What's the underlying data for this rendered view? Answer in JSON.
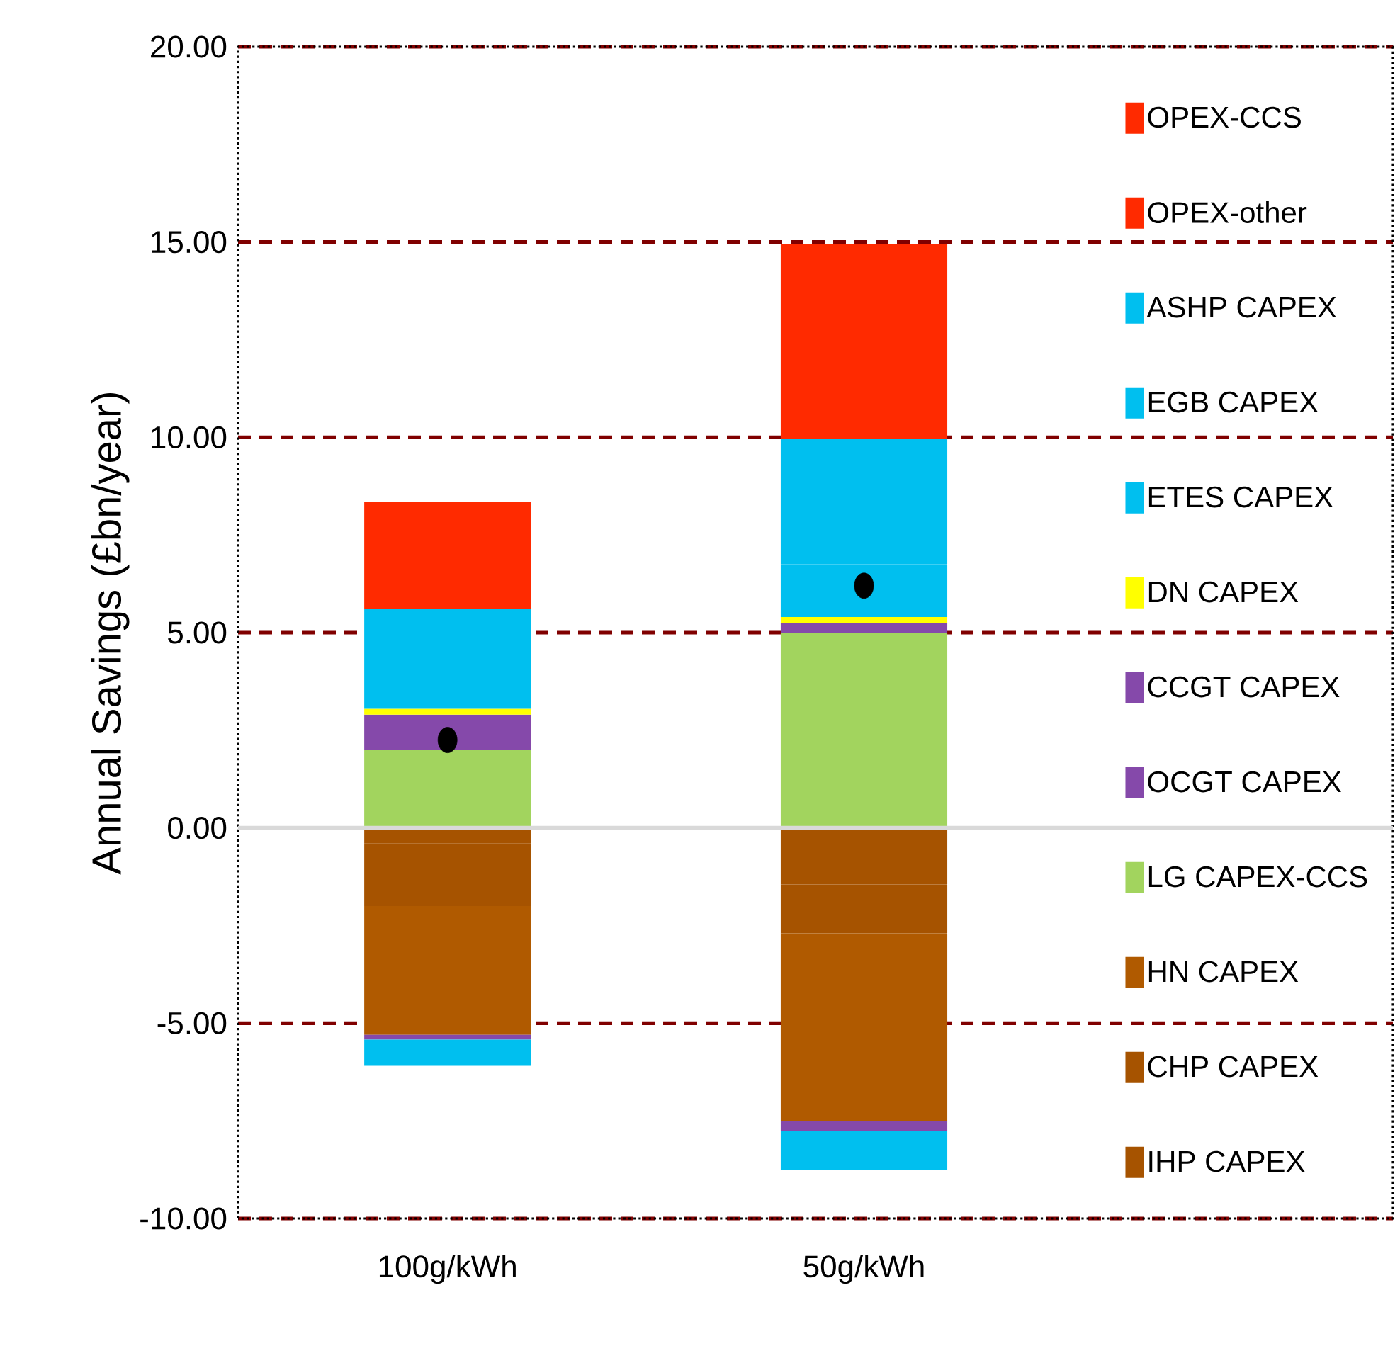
{
  "chart_data": {
    "type": "bar",
    "stacked": true,
    "ylabel": "Annual Savings (£bn/year)",
    "categories": [
      "100g/kWh",
      "50g/kWh"
    ],
    "series": [
      {
        "name": "IHP CAPEX",
        "color": "#a65300",
        "values": [
          -0.4,
          -1.45
        ]
      },
      {
        "name": "CHP CAPEX",
        "color": "#a65300",
        "values": [
          -1.6,
          -1.25
        ]
      },
      {
        "name": "HN CAPEX",
        "color": "#b05a00",
        "values": [
          -3.3,
          -4.8
        ]
      },
      {
        "name": "LG CAPEX-CCS",
        "color": "#a2d45e",
        "values": [
          2.0,
          5.0
        ]
      },
      {
        "name": "OCGT CAPEX",
        "color": "#8549aa",
        "values": [
          -0.12,
          -0.25
        ]
      },
      {
        "name": "CCGT CAPEX",
        "color": "#8549aa",
        "values": [
          0.9,
          0.25
        ]
      },
      {
        "name": "DN CAPEX",
        "color": "#ffff00",
        "values": [
          0.15,
          0.15
        ]
      },
      {
        "name": "ETES CAPEX",
        "color": "#00bfef",
        "values": [
          -0.67,
          -1.0
        ]
      },
      {
        "name": "EGB CAPEX",
        "color": "#00bfef",
        "values": [
          0.95,
          1.35
        ]
      },
      {
        "name": "ASHP CAPEX",
        "color": "#00bfef",
        "values": [
          1.6,
          3.2
        ]
      },
      {
        "name": "OPEX-other",
        "color": "#ff2a00",
        "values": [
          0.65,
          0
        ]
      },
      {
        "name": "OPEX-CCS",
        "color": "#ff2a00",
        "values": [
          2.1,
          5.0
        ]
      },
      {
        "type": "scatter",
        "color": "#000000",
        "marker": "circle",
        "x": [
          "100g/kWh",
          "50g/kWh"
        ],
        "values": [
          2.25,
          6.2
        ]
      }
    ],
    "ylim": [
      -10,
      20
    ],
    "yticks": [
      {
        "value": -10,
        "label": "-10.00"
      },
      {
        "value": -5,
        "label": "-5.00"
      },
      {
        "value": 0,
        "label": "0.00"
      },
      {
        "value": 5,
        "label": "5.00"
      },
      {
        "value": 10,
        "label": "10.00"
      },
      {
        "value": 15,
        "label": "15.00"
      },
      {
        "value": 20,
        "label": "20.00"
      }
    ],
    "grid": "y",
    "legend": "right"
  }
}
